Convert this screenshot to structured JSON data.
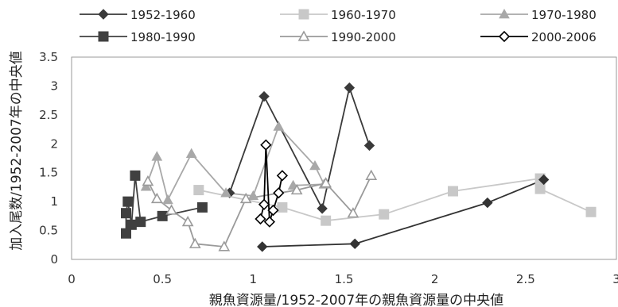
{
  "chart_data": {
    "type": "line",
    "title": "",
    "xlabel": "親魚資源量/1952-2007年の親魚資源量の中央値",
    "ylabel": "加入尾数/1952-2007年の中央値",
    "xlim": [
      0,
      3
    ],
    "ylim": [
      0,
      3.5
    ],
    "x_ticks": [
      "0",
      "0.5",
      "1",
      "1.5",
      "2",
      "2.5",
      "3"
    ],
    "y_ticks": [
      "0",
      "0.5",
      "1",
      "1.5",
      "2",
      "2.5",
      "3",
      "3.5"
    ],
    "grid": false,
    "legend_position": "top",
    "series": [
      {
        "name": "1952-1960",
        "color": "#3a3a3a",
        "marker": "diamond-filled",
        "points": [
          [
            0.87,
            1.15
          ],
          [
            1.06,
            2.82
          ],
          [
            1.38,
            0.88
          ],
          [
            1.53,
            2.97
          ],
          [
            1.64,
            1.97
          ]
        ]
      },
      {
        "name": "1960-1970",
        "color": "#c8c8c8",
        "marker": "square-filled",
        "points": [
          [
            0.7,
            1.2
          ],
          [
            1.16,
            0.9
          ],
          [
            1.4,
            0.67
          ],
          [
            1.72,
            0.78
          ],
          [
            2.1,
            1.18
          ],
          [
            2.58,
            1.4
          ],
          [
            2.58,
            1.22
          ],
          [
            2.86,
            0.82
          ]
        ]
      },
      {
        "name": "1970-1980",
        "color": "#a8a8a8",
        "marker": "triangle-filled",
        "points": [
          [
            0.41,
            1.26
          ],
          [
            0.47,
            1.78
          ],
          [
            0.53,
            1.03
          ],
          [
            0.66,
            1.83
          ],
          [
            0.85,
            1.15
          ],
          [
            1.0,
            1.1
          ],
          [
            1.14,
            2.3
          ],
          [
            1.34,
            1.62
          ],
          [
            1.39,
            1.3
          ],
          [
            1.22,
            1.28
          ]
        ]
      },
      {
        "name": "1980-1990",
        "color": "#404040",
        "marker": "square-filled",
        "points": [
          [
            0.3,
            0.45
          ],
          [
            0.3,
            0.8
          ],
          [
            0.31,
            1.0
          ],
          [
            0.33,
            0.6
          ],
          [
            0.35,
            1.45
          ],
          [
            0.38,
            0.65
          ],
          [
            0.5,
            0.75
          ],
          [
            0.72,
            0.9
          ]
        ]
      },
      {
        "name": "1990-2000",
        "color": "#9a9a9a",
        "marker": "triangle-open",
        "points": [
          [
            0.42,
            1.35
          ],
          [
            0.47,
            1.05
          ],
          [
            0.55,
            0.85
          ],
          [
            0.64,
            0.65
          ],
          [
            0.68,
            0.27
          ],
          [
            0.84,
            0.22
          ],
          [
            0.96,
            1.05
          ],
          [
            1.24,
            1.2
          ],
          [
            1.4,
            1.32
          ],
          [
            1.55,
            0.8
          ],
          [
            1.65,
            1.45
          ]
        ]
      },
      {
        "name": "2000-2006",
        "color": "#000000",
        "marker": "diamond-open",
        "points": [
          [
            1.04,
            0.7
          ],
          [
            1.06,
            0.95
          ],
          [
            1.07,
            1.98
          ],
          [
            1.09,
            0.65
          ],
          [
            1.11,
            0.85
          ],
          [
            1.14,
            1.15
          ],
          [
            1.16,
            1.45
          ]
        ]
      },
      {
        "name": "",
        "color": "#333333",
        "marker": "diamond-filled",
        "points": [
          [
            1.05,
            0.22
          ],
          [
            1.56,
            0.27
          ],
          [
            2.29,
            0.98
          ],
          [
            2.6,
            1.38
          ]
        ]
      }
    ]
  }
}
